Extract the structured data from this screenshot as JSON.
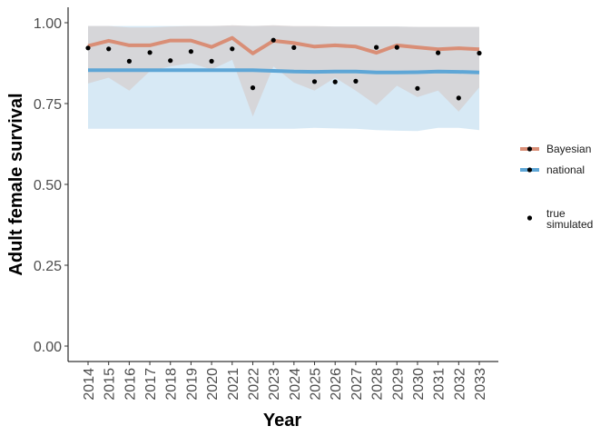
{
  "chart_data": {
    "type": "line",
    "xlabel": "Year",
    "ylabel": "Adult female survival",
    "ylim": [
      -0.05,
      1.05
    ],
    "yticks": [
      0.0,
      0.25,
      0.5,
      0.75,
      1.0
    ],
    "ytick_labels": [
      "0.00",
      "0.25",
      "0.50",
      "0.75",
      "1.00"
    ],
    "x": [
      2014,
      2015,
      2016,
      2017,
      2018,
      2019,
      2020,
      2021,
      2022,
      2023,
      2024,
      2025,
      2026,
      2027,
      2028,
      2029,
      2030,
      2031,
      2032,
      2033
    ],
    "x_labels": [
      "2014",
      "2015",
      "2016",
      "2017",
      "2018",
      "2019",
      "2020",
      "2021",
      "2022",
      "2023",
      "2024",
      "2025",
      "2026",
      "2027",
      "2028",
      "2029",
      "2030",
      "2031",
      "2032",
      "2033"
    ],
    "grid": false,
    "legend_position": "right",
    "series": [
      {
        "name": "national",
        "color": "#5ea6d6",
        "band_color": "#c9e1f1",
        "values": [
          0.853,
          0.853,
          0.853,
          0.853,
          0.853,
          0.853,
          0.853,
          0.853,
          0.853,
          0.851,
          0.849,
          0.848,
          0.849,
          0.849,
          0.846,
          0.846,
          0.847,
          0.849,
          0.848,
          0.846
        ],
        "lower": [
          0.672,
          0.672,
          0.672,
          0.672,
          0.672,
          0.672,
          0.672,
          0.672,
          0.672,
          0.672,
          0.672,
          0.675,
          0.673,
          0.672,
          0.668,
          0.666,
          0.665,
          0.675,
          0.675,
          0.668
        ],
        "upper": [
          0.99,
          0.99,
          0.99,
          0.99,
          0.99,
          0.99,
          0.99,
          0.99,
          0.99,
          0.99,
          0.988,
          0.988,
          0.988,
          0.988,
          0.988,
          0.988,
          0.987,
          0.987,
          0.987,
          0.987
        ]
      },
      {
        "name": "Bayesian",
        "color": "#d98e76",
        "band_color": "#d6cdcd",
        "values": [
          0.928,
          0.944,
          0.93,
          0.93,
          0.945,
          0.945,
          0.925,
          0.953,
          0.905,
          0.944,
          0.937,
          0.926,
          0.93,
          0.926,
          0.907,
          0.93,
          0.924,
          0.918,
          0.921,
          0.918
        ],
        "lower": [
          0.812,
          0.83,
          0.79,
          0.85,
          0.865,
          0.875,
          0.855,
          0.885,
          0.71,
          0.865,
          0.815,
          0.79,
          0.83,
          0.79,
          0.745,
          0.805,
          0.77,
          0.79,
          0.725,
          0.8
        ],
        "upper": [
          0.99,
          0.99,
          0.985,
          0.985,
          0.988,
          0.99,
          0.99,
          0.992,
          0.99,
          0.992,
          0.99,
          0.99,
          0.988,
          0.988,
          0.988,
          0.988,
          0.987,
          0.987,
          0.987,
          0.987
        ]
      },
      {
        "name": "true\nsimulated",
        "type": "scatter",
        "color": "#000000",
        "values": [
          0.922,
          0.919,
          0.881,
          0.908,
          0.883,
          0.911,
          0.881,
          0.919,
          0.799,
          0.946,
          0.923,
          0.818,
          0.817,
          0.819,
          0.924,
          0.924,
          0.797,
          0.907,
          0.767,
          0.906
        ]
      }
    ],
    "legend": [
      {
        "label": "Bayesian",
        "kind": "line-point",
        "color": "#d98e76"
      },
      {
        "label": "national",
        "kind": "line-point",
        "color": "#5ea6d6"
      },
      {
        "label": "true\nsimulated",
        "kind": "point",
        "color": "#000000"
      }
    ]
  }
}
